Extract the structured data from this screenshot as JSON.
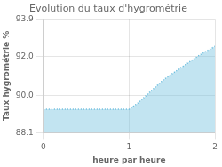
{
  "chart_data": {
    "type": "line",
    "title": "Evolution du taux d'hygrométrie",
    "xlabel": "heure par heure",
    "ylabel": "Taux hygrométrie %",
    "x": [
      0,
      0.5,
      1.0,
      1.1,
      1.2,
      1.3,
      1.4,
      1.5,
      1.6,
      1.7,
      1.8,
      1.9,
      2.0
    ],
    "values": [
      89.3,
      89.3,
      89.3,
      89.6,
      90.0,
      90.4,
      90.8,
      91.1,
      91.4,
      91.7,
      92.0,
      92.25,
      92.5
    ],
    "color": "#66bbdd",
    "line_style": "dotted",
    "marker": "none",
    "xlim": [
      0,
      2
    ],
    "xticks": [
      0,
      1,
      2
    ],
    "ylim": [
      88.1,
      93.9
    ],
    "yticks": [
      88.1,
      {
        "value": 90,
        "label": "90.0"
      },
      {
        "value": 92,
        "label": "92.0"
      },
      93.9
    ],
    "grid": true
  }
}
